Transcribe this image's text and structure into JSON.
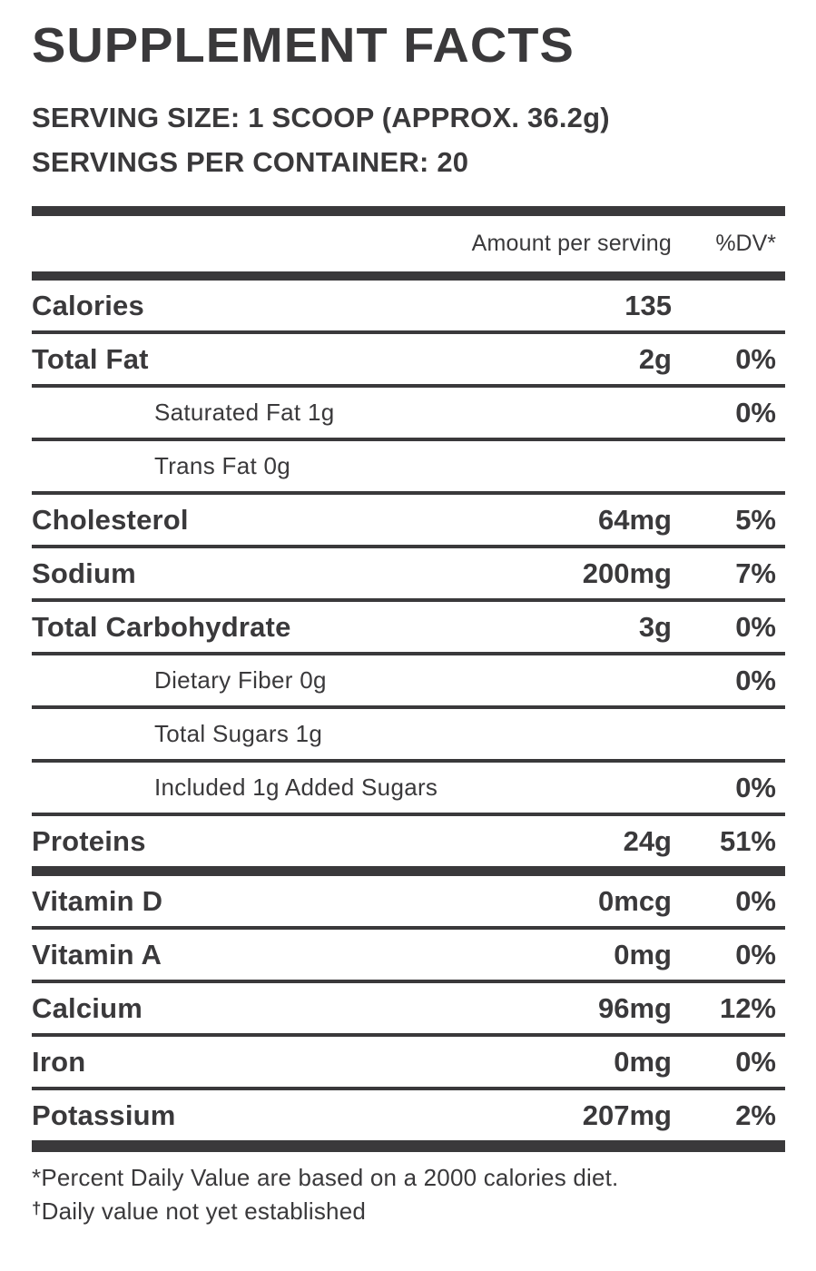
{
  "title": "SUPPLEMENT FACTS",
  "serving": {
    "size_label": "SERVING SIZE: 1 SCOOP (APPROX. 36.2g)",
    "per_container_label": "SERVINGS PER CONTAINER: 20"
  },
  "table": {
    "columns": {
      "amount": "Amount per serving",
      "dv": "%DV*"
    },
    "rows": [
      {
        "label": "Calories",
        "amount": "135",
        "dv": "",
        "style": "main"
      },
      {
        "label": "Total Fat",
        "amount": "2g",
        "dv": "0%",
        "style": "main"
      },
      {
        "label": "Saturated Fat 1g",
        "amount": "",
        "dv": "0%",
        "style": "sub"
      },
      {
        "label": "Trans Fat 0g",
        "amount": "",
        "dv": "",
        "style": "sub"
      },
      {
        "label": "Cholesterol",
        "amount": "64mg",
        "dv": "5%",
        "style": "main"
      },
      {
        "label": "Sodium",
        "amount": "200mg",
        "dv": "7%",
        "style": "main"
      },
      {
        "label": "Total Carbohydrate",
        "amount": "3g",
        "dv": "0%",
        "style": "main"
      },
      {
        "label": "Dietary Fiber 0g",
        "amount": "",
        "dv": "0%",
        "style": "sub"
      },
      {
        "label": "Total Sugars 1g",
        "amount": "",
        "dv": "",
        "style": "sub"
      },
      {
        "label": "Included 1g Added Sugars",
        "amount": "",
        "dv": "0%",
        "style": "sub"
      },
      {
        "label": "Proteins",
        "amount": "24g",
        "dv": "51%",
        "style": "main",
        "divider_after": "thick"
      },
      {
        "label": "Vitamin D",
        "amount": "0mcg",
        "dv": "0%",
        "style": "main"
      },
      {
        "label": "Vitamin A",
        "amount": "0mg",
        "dv": "0%",
        "style": "main"
      },
      {
        "label": "Calcium",
        "amount": "96mg",
        "dv": "12%",
        "style": "main"
      },
      {
        "label": "Iron",
        "amount": "0mg",
        "dv": "0%",
        "style": "main"
      },
      {
        "label": "Potassium",
        "amount": "207mg",
        "dv": "2%",
        "style": "main",
        "divider_after": "thick"
      }
    ]
  },
  "footnotes": [
    {
      "prefix": "*",
      "text": "Percent Daily Value are based on a 2000 calories diet."
    },
    {
      "prefix": "†",
      "text": "Daily value not yet established"
    }
  ],
  "colors": {
    "ink": "#3a393b",
    "background": "#ffffff"
  }
}
